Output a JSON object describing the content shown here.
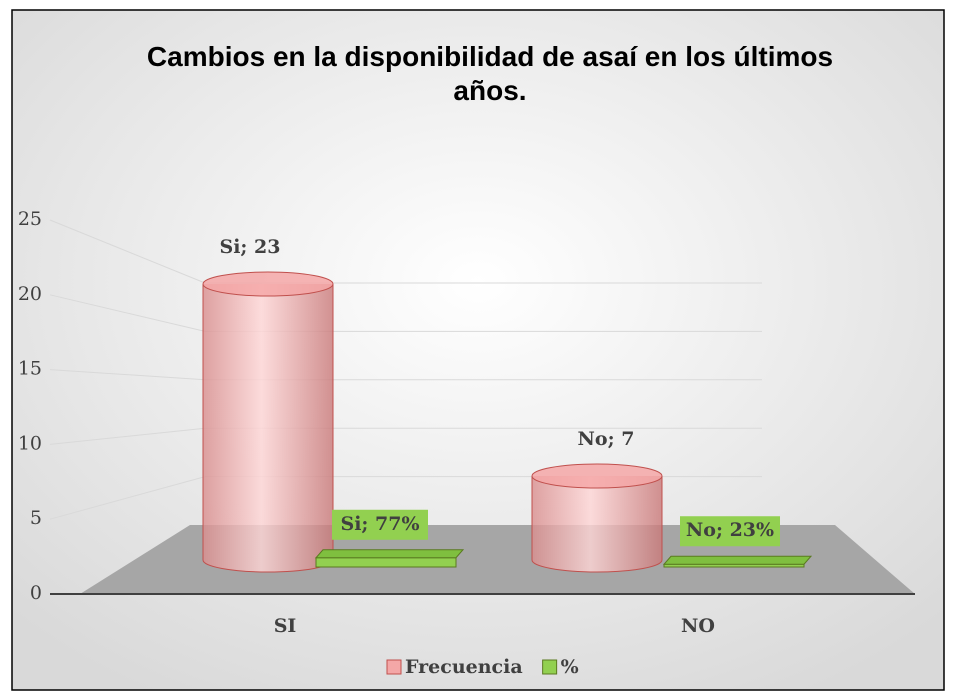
{
  "chart_data": {
    "type": "bar",
    "title": "Cambios en la disponibilidad de asaí en los últimos años.",
    "categories": [
      "SI",
      "NO"
    ],
    "series": [
      {
        "name": "Frecuencia",
        "color": "#f4a7a7",
        "values": [
          23,
          7
        ],
        "value_labels": [
          "Si; 23",
          "No; 7"
        ]
      },
      {
        "name": "%",
        "color": "#92d050",
        "values": [
          0.77,
          0.23
        ],
        "value_labels": [
          "Si; 77%",
          "No; 23%"
        ]
      }
    ],
    "ylim": [
      0,
      25
    ],
    "yticks": [
      0,
      5,
      10,
      15,
      20,
      25
    ],
    "grid": true,
    "legend": "bottom"
  }
}
